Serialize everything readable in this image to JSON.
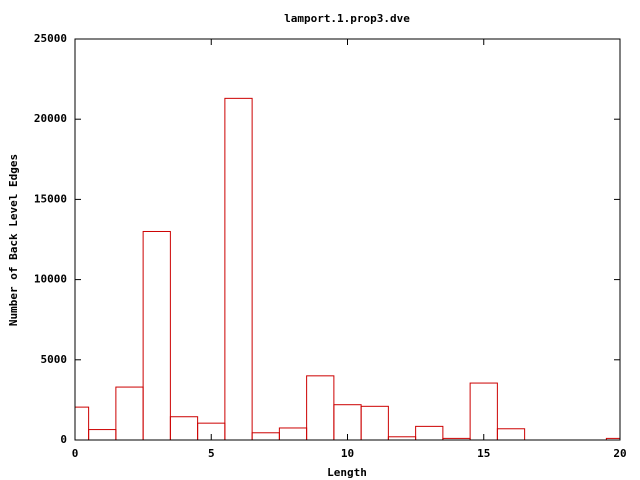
{
  "chart_data": {
    "type": "histogram",
    "title": "lamport.1.prop3.dve",
    "x_label": "Length",
    "y_label": "Number of Back Level Edges",
    "bins": [
      -0.5,
      0.5,
      1.5,
      2.5,
      3.5,
      4.5,
      5.5,
      6.5,
      7.5,
      8.5,
      9.5,
      10.5,
      11.5,
      12.5,
      13.5,
      14.5,
      15.5,
      16.5,
      17.5,
      18.5,
      19.5,
      20.5
    ],
    "values": [
      2050,
      650,
      3300,
      13000,
      1450,
      1050,
      21300,
      450,
      750,
      4000,
      2200,
      2100,
      200,
      850,
      100,
      3550,
      700,
      0,
      0,
      0,
      100
    ],
    "color": "#cc0000",
    "xlim": [
      0,
      20
    ],
    "xticks": [
      0,
      5,
      10,
      15,
      20
    ],
    "ylim": [
      0,
      25000
    ],
    "yticks": [
      0,
      5000,
      10000,
      15000,
      20000,
      25000
    ]
  }
}
